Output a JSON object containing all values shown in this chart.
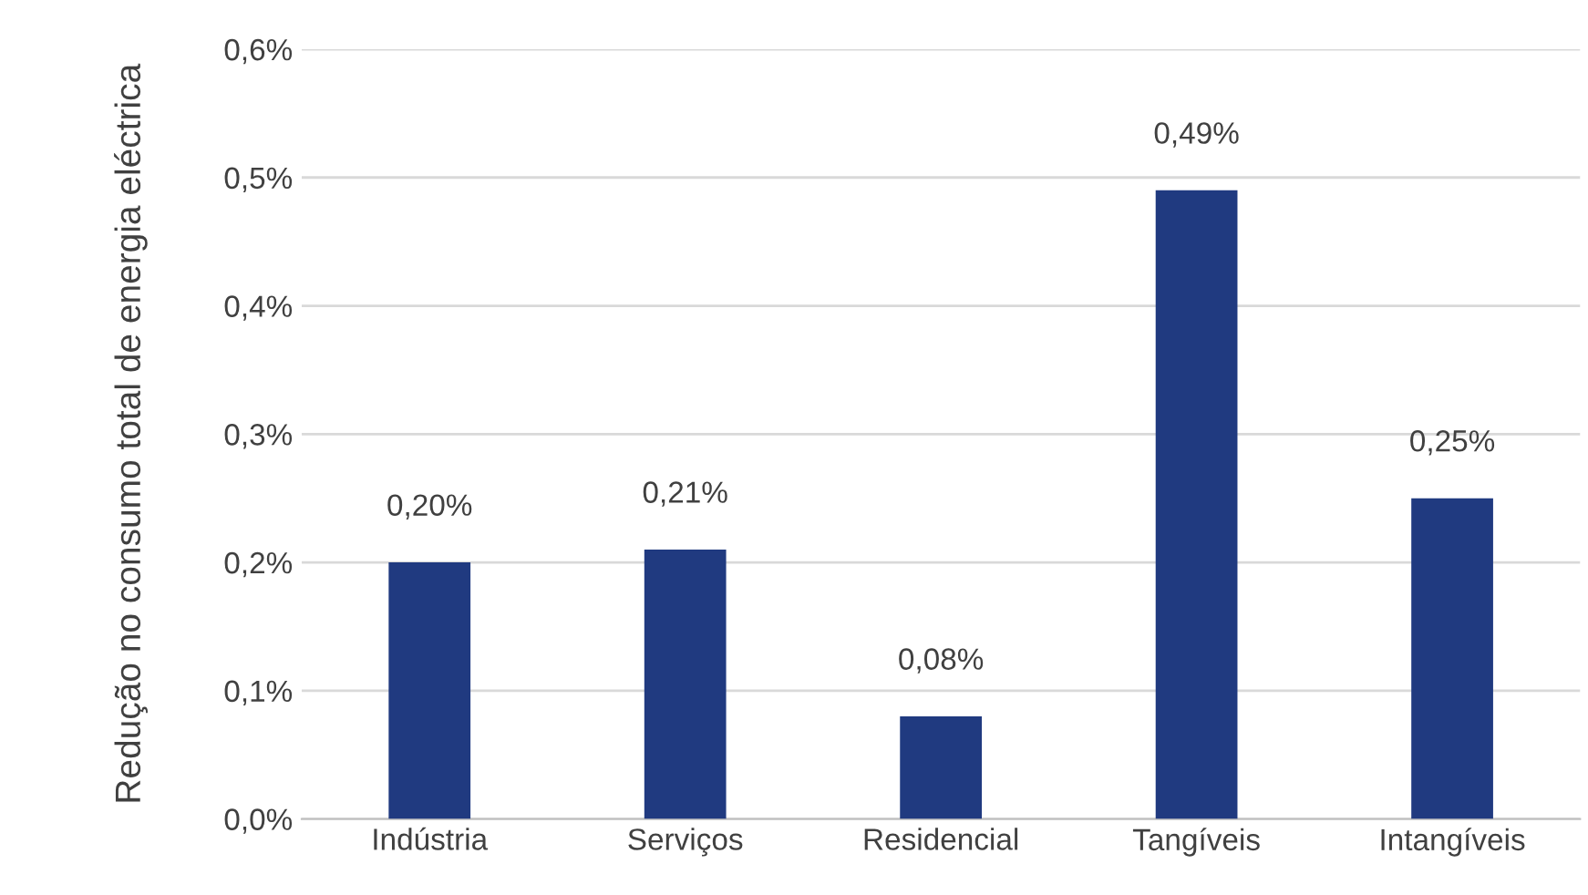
{
  "chart_data": {
    "type": "bar",
    "ylabel": "Redução no consumo total de energia eléctrica",
    "categories": [
      "Indústria",
      "Serviços",
      "Residencial",
      "Tangíveis",
      "Intangíveis"
    ],
    "values": [
      0.2,
      0.21,
      0.08,
      0.49,
      0.25
    ],
    "value_labels": [
      "0,20%",
      "0,21%",
      "0,08%",
      "0,49%",
      "0,25%"
    ],
    "color": "#203a80",
    "ylim": [
      0,
      0.6
    ],
    "yticks": [
      {
        "value": 0,
        "label": "0,0%"
      },
      {
        "value": 0.1,
        "label": "0,1%"
      },
      {
        "value": 0.2,
        "label": "0,2%"
      },
      {
        "value": 0.3,
        "label": "0,3%"
      },
      {
        "value": 0.4,
        "label": "0,4%"
      },
      {
        "value": 0.5,
        "label": "0,5%"
      },
      {
        "value": 0.6,
        "label": "0,6%"
      }
    ],
    "grid": "y",
    "legend": false
  }
}
